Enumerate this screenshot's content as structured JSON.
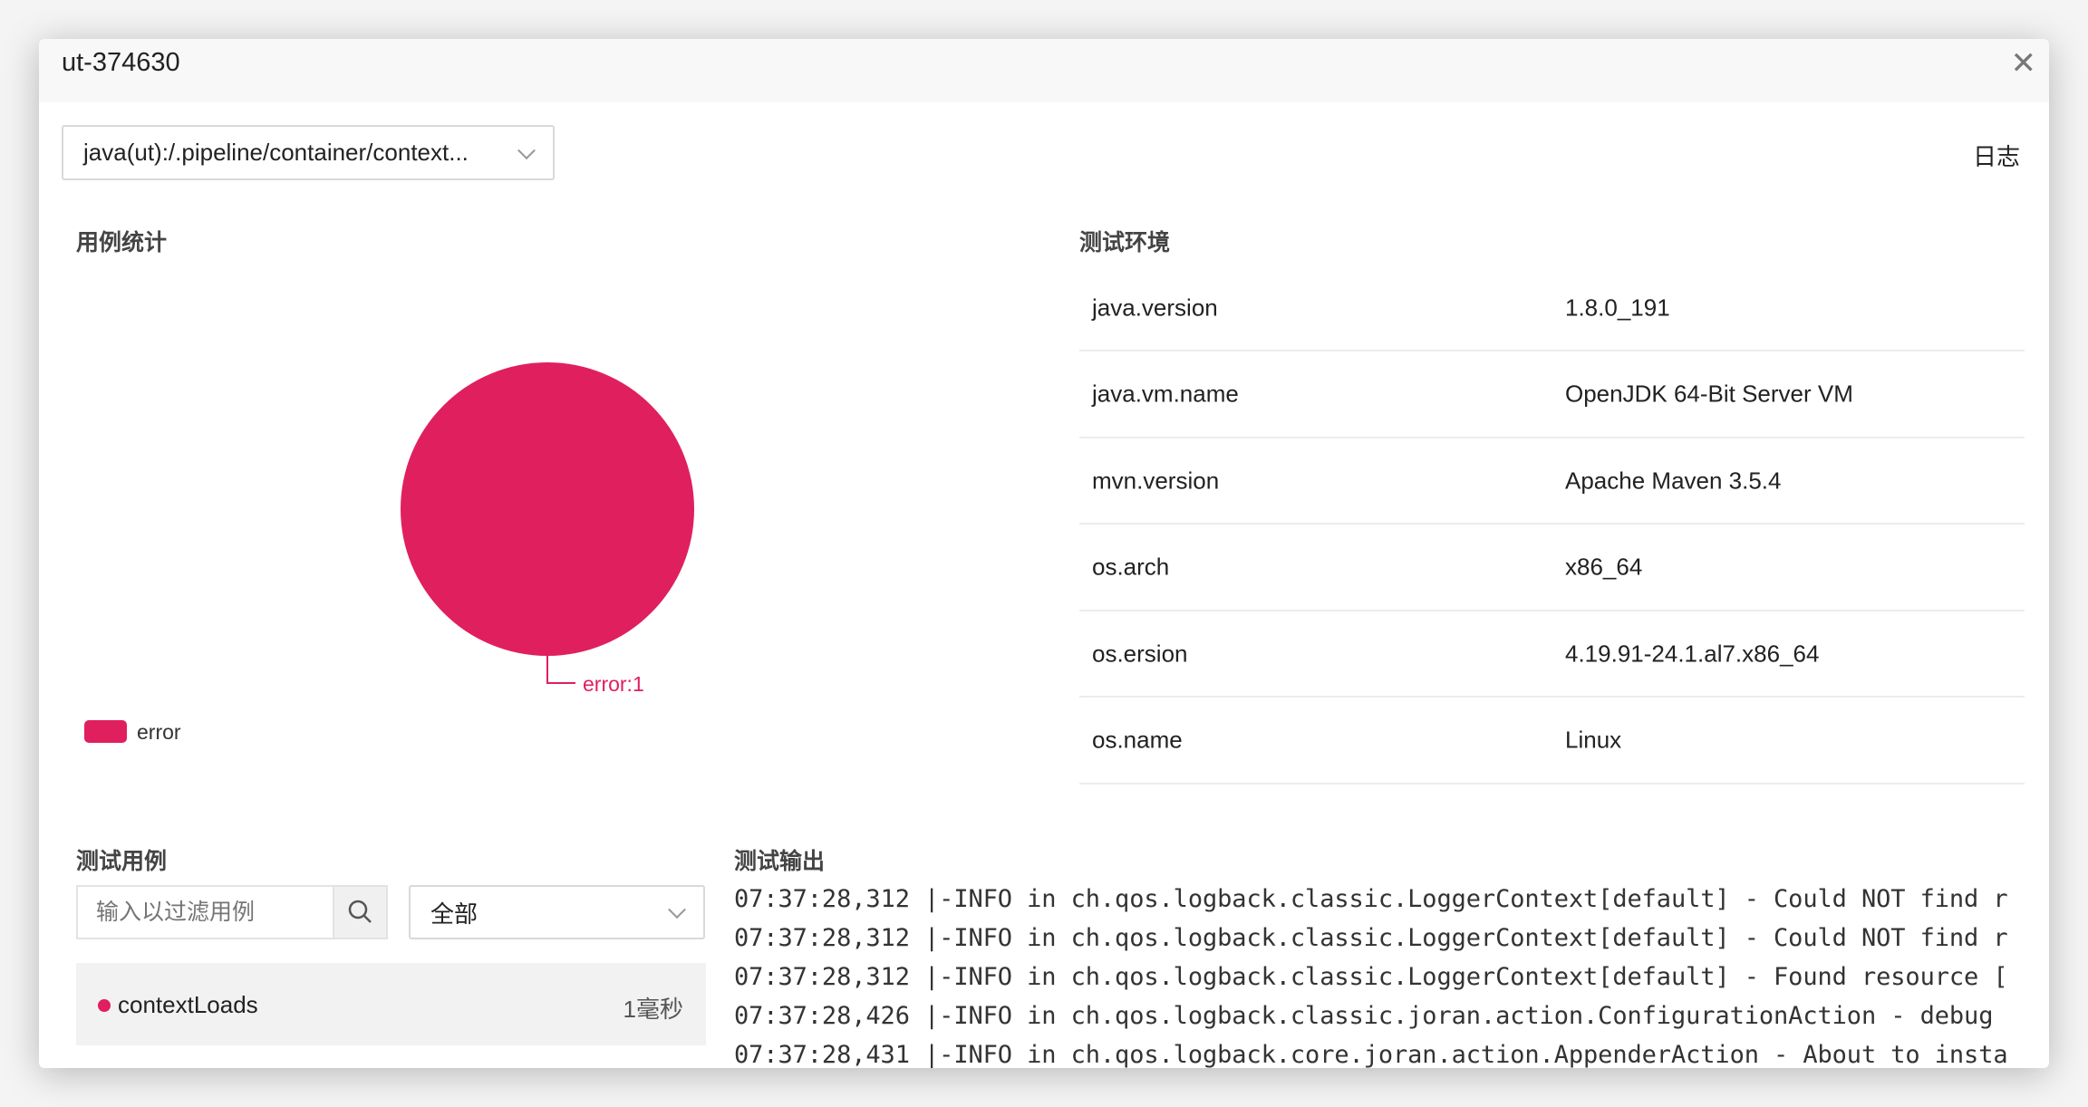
{
  "dialog": {
    "title": "ut-374630",
    "close_icon": "close-icon"
  },
  "toolbar": {
    "module_select": "java(ut):/.pipeline/container/context...",
    "log_link": "日志"
  },
  "stats": {
    "heading": "用例统计"
  },
  "chart_data": {
    "type": "pie",
    "slices": [
      {
        "label": "error",
        "value": 1,
        "color": "#E01F5F"
      }
    ],
    "data_labels": [
      "error:1"
    ],
    "legend": {
      "entries": [
        "error"
      ],
      "placement": "bottom-left"
    }
  },
  "env": {
    "heading": "测试环境",
    "rows": [
      {
        "key": "java.version",
        "value": "1.8.0_191"
      },
      {
        "key": "java.vm.name",
        "value": "OpenJDK 64-Bit Server VM"
      },
      {
        "key": "mvn.version",
        "value": "Apache Maven 3.5.4"
      },
      {
        "key": "os.arch",
        "value": "x86_64"
      },
      {
        "key": "os.ersion",
        "value": "4.19.91-24.1.al7.x86_64"
      },
      {
        "key": "os.name",
        "value": "Linux"
      }
    ]
  },
  "cases": {
    "heading": "测试用例",
    "filter_placeholder": "输入以过滤用例",
    "status_select": "全部",
    "items": [
      {
        "name": "contextLoads",
        "duration": "1毫秒",
        "status_color": "#E01F5F"
      }
    ]
  },
  "output": {
    "heading": "测试输出",
    "lines": [
      "07:37:28,312 |-INFO in ch.qos.logback.classic.LoggerContext[default] - Could NOT find r",
      "07:37:28,312 |-INFO in ch.qos.logback.classic.LoggerContext[default] - Could NOT find r",
      "07:37:28,312 |-INFO in ch.qos.logback.classic.LoggerContext[default] - Found resource [",
      "07:37:28,426 |-INFO in ch.qos.logback.classic.joran.action.ConfigurationAction - debug ",
      "07:37:28,431 |-INFO in ch.qos.logback.core.joran.action.AppenderAction - About to insta"
    ]
  }
}
